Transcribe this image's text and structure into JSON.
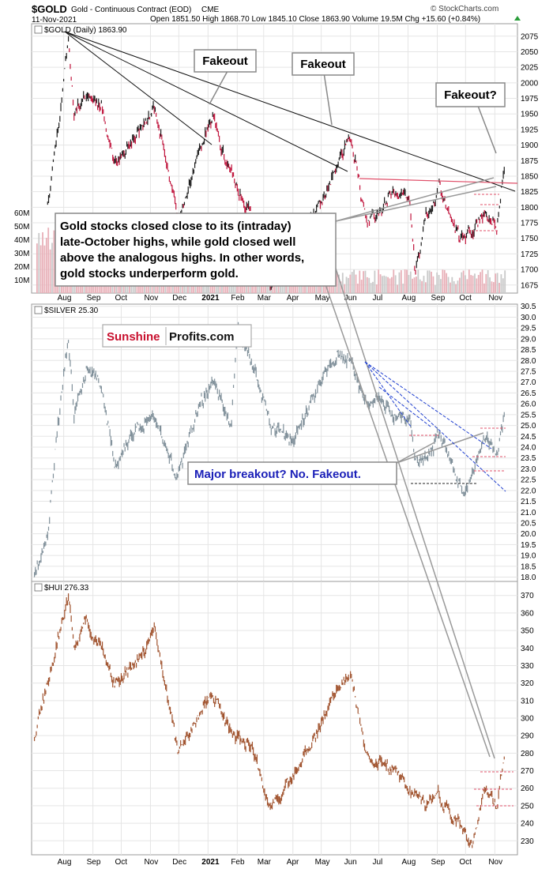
{
  "header": {
    "symbol": "$GOLD",
    "name": "Gold - Continuous Contract (EOD)",
    "exchange": "CME",
    "date": "11-Nov-2021",
    "ohlc": "Open 1851.50  High 1868.70  Low 1845.10  Close 1863.90  Volume 19.5M  Chg +15.60 (+0.84%)",
    "watermark": "© StockCharts.com"
  },
  "x_axis_labels": [
    "Aug",
    "Sep",
    "Oct",
    "Nov",
    "Dec",
    "2021",
    "Feb",
    "Mar",
    "Apr",
    "May",
    "Jun",
    "Jul",
    "Aug",
    "Sep",
    "Oct",
    "Nov"
  ],
  "annotations": {
    "fakeout_1": "Fakeout",
    "fakeout_2": "Fakeout",
    "fakeout_3": "Fakeout?",
    "note_lines": [
      "Gold stocks closed close to its (intraday)",
      "late-October highs, while gold closed well",
      "above the analogous highs. In other words,",
      "gold stocks underperform gold."
    ],
    "brand_part1": "Sunshine",
    "brand_part2": "Profits.com",
    "silver_note": "Major breakout? No. Fakeout."
  },
  "colors": {
    "gold_up": "#1a1a1a",
    "gold_down": "#c0143c",
    "silver": "#7f8f99",
    "hui": "#a0522d",
    "volume": "#e8b0b8",
    "grid": "#e5e5e5",
    "trend_red": "#e0506a",
    "trend_blue": "#1f3fd0",
    "brand_red": "#c8102e"
  },
  "chart_data": [
    {
      "type": "line",
      "title": "$GOLD (Daily) 1863.90",
      "ylim": [
        1662,
        2095
      ],
      "y_ticks": [
        1675,
        1700,
        1725,
        1750,
        1775,
        1800,
        1825,
        1850,
        1875,
        1900,
        1925,
        1950,
        1975,
        2000,
        2025,
        2050,
        2075
      ],
      "volume_labels": [
        "10M",
        "20M",
        "30M",
        "40M",
        "50M",
        "60M"
      ],
      "series": [
        {
          "name": "$GOLD",
          "x": [
            "2020-07-15",
            "2020-07-28",
            "2020-08-06",
            "2020-08-12",
            "2020-08-25",
            "2020-09-10",
            "2020-09-24",
            "2020-10-15",
            "2020-11-06",
            "2020-11-30",
            "2020-12-21",
            "2021-01-06",
            "2021-01-20",
            "2021-02-15",
            "2021-03-08",
            "2021-03-31",
            "2021-04-20",
            "2021-05-10",
            "2021-06-01",
            "2021-06-17",
            "2021-07-01",
            "2021-07-15",
            "2021-08-03",
            "2021-08-09",
            "2021-08-20",
            "2021-09-03",
            "2021-09-24",
            "2021-10-08",
            "2021-10-22",
            "2021-11-03",
            "2021-11-11"
          ],
          "values": [
            1810,
            1950,
            2075,
            1950,
            1985,
            1965,
            1870,
            1910,
            1960,
            1780,
            1880,
            1950,
            1870,
            1790,
            1680,
            1715,
            1780,
            1840,
            1915,
            1780,
            1785,
            1830,
            1810,
            1690,
            1785,
            1830,
            1750,
            1760,
            1795,
            1765,
            1864
          ]
        }
      ]
    },
    {
      "type": "line",
      "title": "$SILVER 25.30",
      "ylim": [
        17.8,
        30.6
      ],
      "y_ticks": [
        18.0,
        18.5,
        19.0,
        19.5,
        20.0,
        20.5,
        21.0,
        21.5,
        22.0,
        22.5,
        23.0,
        23.5,
        24.0,
        24.5,
        25.0,
        25.5,
        26.0,
        26.5,
        27.0,
        27.5,
        28.0,
        28.5,
        29.0,
        29.5,
        30.0,
        30.5
      ],
      "series": [
        {
          "name": "$SILVER",
          "x": [
            "2020-07-01",
            "2020-07-15",
            "2020-07-22",
            "2020-08-06",
            "2020-08-12",
            "2020-08-25",
            "2020-09-10",
            "2020-09-24",
            "2020-10-15",
            "2020-11-06",
            "2020-11-30",
            "2020-12-21",
            "2021-01-06",
            "2021-01-26",
            "2021-02-01",
            "2021-02-20",
            "2021-03-08",
            "2021-03-31",
            "2021-04-20",
            "2021-05-18",
            "2021-06-01",
            "2021-06-17",
            "2021-07-01",
            "2021-07-15",
            "2021-08-03",
            "2021-08-09",
            "2021-08-20",
            "2021-09-03",
            "2021-09-24",
            "2021-09-30",
            "2021-10-22",
            "2021-11-03",
            "2021-11-11"
          ],
          "values": [
            18.2,
            19.8,
            23.5,
            29.0,
            25.5,
            27.5,
            27.0,
            23.0,
            24.8,
            25.5,
            22.5,
            25.8,
            27.0,
            25.0,
            29.5,
            27.5,
            25.0,
            24.3,
            26.0,
            28.3,
            28.0,
            26.0,
            26.3,
            25.5,
            25.3,
            23.3,
            23.5,
            24.5,
            22.3,
            22.0,
            24.5,
            23.5,
            25.3
          ]
        }
      ]
    },
    {
      "type": "line",
      "title": "$HUI 276.33",
      "ylim": [
        222,
        378
      ],
      "y_ticks": [
        230,
        240,
        250,
        260,
        270,
        280,
        290,
        300,
        310,
        320,
        330,
        340,
        350,
        360,
        370
      ],
      "series": [
        {
          "name": "$HUI",
          "x": [
            "2020-07-01",
            "2020-07-15",
            "2020-08-06",
            "2020-08-12",
            "2020-08-25",
            "2020-09-10",
            "2020-09-24",
            "2020-10-15",
            "2020-11-06",
            "2020-11-30",
            "2020-12-21",
            "2021-01-06",
            "2021-01-26",
            "2021-02-15",
            "2021-03-08",
            "2021-03-31",
            "2021-04-20",
            "2021-05-18",
            "2021-06-01",
            "2021-06-17",
            "2021-07-01",
            "2021-07-15",
            "2021-08-03",
            "2021-08-20",
            "2021-09-03",
            "2021-09-24",
            "2021-09-30",
            "2021-10-08",
            "2021-10-22",
            "2021-11-03",
            "2021-11-11"
          ],
          "values": [
            290,
            320,
            370,
            340,
            355,
            340,
            320,
            330,
            350,
            280,
            300,
            315,
            290,
            285,
            250,
            265,
            285,
            315,
            325,
            280,
            275,
            270,
            260,
            250,
            255,
            240,
            235,
            228,
            262,
            250,
            276
          ]
        }
      ]
    }
  ]
}
